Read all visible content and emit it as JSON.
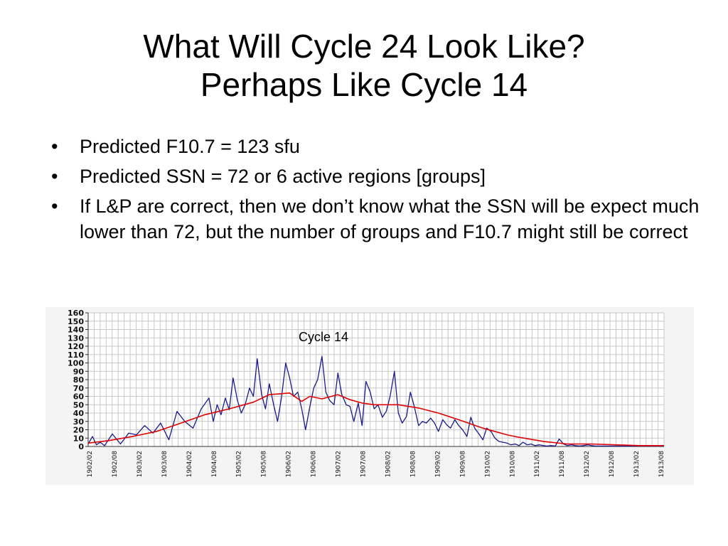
{
  "slide": {
    "title_line1": "What Will Cycle 24 Look Like?",
    "title_line2": "Perhaps Like Cycle 14",
    "bullet_char": "•",
    "bullets": [
      "Predicted F10.7 = 123 sfu",
      "Predicted SSN = 72 or 6 active regions [groups]",
      "If L&P are correct, then we don’t know what the SSN will be expect much lower than 72, but the number of groups and F10.7 might still be correct"
    ]
  },
  "chart_data": {
    "type": "line",
    "title": "",
    "annotation": "Cycle 14",
    "xlabel": "",
    "ylabel": "",
    "ylim": [
      0,
      160
    ],
    "yticks": [
      0,
      10,
      20,
      30,
      40,
      50,
      60,
      70,
      80,
      90,
      100,
      110,
      120,
      130,
      140,
      150,
      160
    ],
    "xlim": [
      1902.08,
      1914.0
    ],
    "xtick_labels": [
      "1902/02",
      "1902/08",
      "1903/02",
      "1903/08",
      "1904/02",
      "1904/08",
      "1905/02",
      "1905/08",
      "1906/02",
      "1906/08",
      "1907/02",
      "1907/08",
      "1908/02",
      "1908/08",
      "1909/02",
      "1909/08",
      "1910/02",
      "1910/08",
      "1911/02",
      "1911/08",
      "1912/02",
      "1912/08",
      "1913/02",
      "1913/08"
    ],
    "grid": true,
    "colors": {
      "monthly": "#1a1a8c",
      "smoothed": "#e00000",
      "grid": "#c8c8c8"
    },
    "series": [
      {
        "key": "monthly",
        "x": [
          1902.08,
          1902.17,
          1902.25,
          1902.33,
          1902.42,
          1902.58,
          1902.75,
          1902.92,
          1903.08,
          1903.25,
          1903.42,
          1903.58,
          1903.75,
          1903.92,
          1904.08,
          1904.25,
          1904.42,
          1904.58,
          1904.67,
          1904.75,
          1904.83,
          1904.92,
          1905.0,
          1905.08,
          1905.17,
          1905.25,
          1905.33,
          1905.42,
          1905.5,
          1905.58,
          1905.67,
          1905.75,
          1905.83,
          1905.92,
          1906.0,
          1906.08,
          1906.17,
          1906.25,
          1906.33,
          1906.42,
          1906.5,
          1906.58,
          1906.67,
          1906.75,
          1906.83,
          1906.92,
          1907.0,
          1907.08,
          1907.17,
          1907.25,
          1907.33,
          1907.42,
          1907.5,
          1907.58,
          1907.67,
          1907.75,
          1907.83,
          1907.92,
          1908.0,
          1908.08,
          1908.17,
          1908.25,
          1908.33,
          1908.42,
          1908.5,
          1908.58,
          1908.67,
          1908.75,
          1908.83,
          1908.92,
          1909.0,
          1909.08,
          1909.17,
          1909.25,
          1909.33,
          1909.42,
          1909.5,
          1909.58,
          1909.67,
          1909.75,
          1909.83,
          1909.92,
          1910.0,
          1910.08,
          1910.17,
          1910.25,
          1910.33,
          1910.42,
          1910.5,
          1910.58,
          1910.67,
          1910.75,
          1910.83,
          1910.92,
          1911.0,
          1911.08,
          1911.17,
          1911.25,
          1911.33,
          1911.42,
          1911.5,
          1911.58,
          1911.67,
          1911.75,
          1911.83,
          1911.92,
          1912.0,
          1912.08,
          1912.17,
          1912.25,
          1912.33,
          1912.42,
          1912.5,
          1912.58,
          1912.67,
          1912.75,
          1912.83,
          1912.92,
          1913.0,
          1913.17,
          1913.33,
          1913.5,
          1913.67,
          1913.83,
          1914.0
        ],
        "values": [
          3,
          12,
          2,
          5,
          1,
          15,
          3,
          16,
          14,
          25,
          16,
          28,
          8,
          42,
          30,
          22,
          45,
          58,
          30,
          50,
          38,
          58,
          44,
          82,
          55,
          40,
          50,
          70,
          60,
          105,
          62,
          45,
          75,
          50,
          30,
          58,
          100,
          82,
          60,
          65,
          45,
          20,
          48,
          70,
          80,
          108,
          65,
          55,
          50,
          88,
          62,
          50,
          48,
          30,
          52,
          25,
          78,
          65,
          45,
          50,
          35,
          42,
          60,
          90,
          40,
          28,
          36,
          65,
          48,
          25,
          30,
          28,
          34,
          28,
          18,
          32,
          26,
          22,
          32,
          25,
          20,
          12,
          35,
          22,
          15,
          8,
          22,
          18,
          10,
          6,
          5,
          4,
          2,
          3,
          1,
          5,
          2,
          3,
          1,
          2,
          1,
          0.5,
          1,
          0.5,
          9,
          3,
          1,
          2,
          1,
          0.5,
          1,
          2,
          1,
          0.5,
          0.5,
          0.5,
          0.5,
          0.5,
          0.5,
          0.5,
          0.5,
          0.5,
          0.5,
          0.5,
          0.5
        ]
      },
      {
        "key": "smoothed",
        "x": [
          1902.08,
          1902.5,
          1903.0,
          1903.5,
          1904.0,
          1904.5,
          1905.0,
          1905.5,
          1905.83,
          1906.25,
          1906.5,
          1906.67,
          1906.92,
          1907.25,
          1907.5,
          1907.75,
          1908.0,
          1908.5,
          1908.92,
          1909.33,
          1909.75,
          1910.25,
          1910.75,
          1911.0,
          1911.5,
          1912.0,
          1912.5,
          1913.0,
          1913.5,
          1914.0
        ],
        "values": [
          4,
          7,
          12,
          18,
          28,
          38,
          45,
          53,
          62,
          64,
          54,
          60,
          57,
          62,
          56,
          52,
          50,
          50,
          46,
          40,
          32,
          22,
          14,
          11,
          6,
          3,
          3,
          2,
          1,
          1
        ]
      }
    ]
  }
}
